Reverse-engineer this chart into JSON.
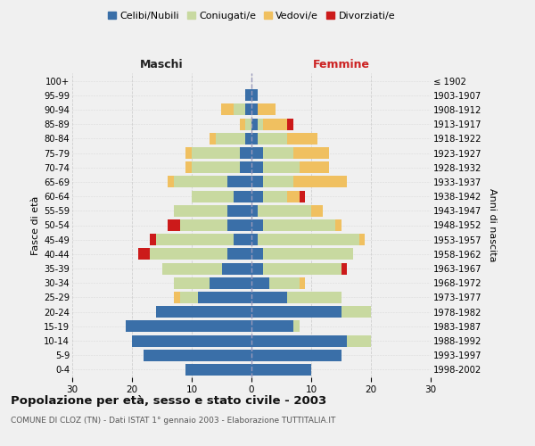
{
  "age_groups": [
    "0-4",
    "5-9",
    "10-14",
    "15-19",
    "20-24",
    "25-29",
    "30-34",
    "35-39",
    "40-44",
    "45-49",
    "50-54",
    "55-59",
    "60-64",
    "65-69",
    "70-74",
    "75-79",
    "80-84",
    "85-89",
    "90-94",
    "95-99",
    "100+"
  ],
  "birth_years": [
    "1998-2002",
    "1993-1997",
    "1988-1992",
    "1983-1987",
    "1978-1982",
    "1973-1977",
    "1968-1972",
    "1963-1967",
    "1958-1962",
    "1953-1957",
    "1948-1952",
    "1943-1947",
    "1938-1942",
    "1933-1937",
    "1928-1932",
    "1923-1927",
    "1918-1922",
    "1913-1917",
    "1908-1912",
    "1903-1907",
    "≤ 1902"
  ],
  "males": {
    "celibi": [
      11,
      18,
      20,
      21,
      16,
      9,
      7,
      5,
      4,
      3,
      4,
      4,
      3,
      4,
      2,
      2,
      1,
      0,
      1,
      1,
      0
    ],
    "coniugati": [
      0,
      0,
      0,
      0,
      0,
      3,
      6,
      10,
      13,
      13,
      8,
      9,
      7,
      9,
      8,
      8,
      5,
      1,
      2,
      0,
      0
    ],
    "vedovi": [
      0,
      0,
      0,
      0,
      0,
      1,
      0,
      0,
      0,
      0,
      0,
      0,
      0,
      1,
      1,
      1,
      1,
      1,
      2,
      0,
      0
    ],
    "divorziati": [
      0,
      0,
      0,
      0,
      0,
      0,
      0,
      0,
      2,
      1,
      2,
      0,
      0,
      0,
      0,
      0,
      0,
      0,
      0,
      0,
      0
    ]
  },
  "females": {
    "nubili": [
      10,
      15,
      16,
      7,
      15,
      6,
      3,
      2,
      2,
      1,
      2,
      1,
      2,
      2,
      2,
      2,
      1,
      1,
      1,
      1,
      0
    ],
    "coniugate": [
      0,
      0,
      4,
      1,
      5,
      9,
      5,
      13,
      15,
      17,
      12,
      9,
      4,
      5,
      6,
      5,
      5,
      1,
      0,
      0,
      0
    ],
    "vedove": [
      0,
      0,
      0,
      0,
      0,
      0,
      1,
      0,
      0,
      1,
      1,
      2,
      2,
      9,
      5,
      6,
      5,
      4,
      3,
      0,
      0
    ],
    "divorziate": [
      0,
      0,
      0,
      0,
      0,
      0,
      0,
      1,
      0,
      0,
      0,
      0,
      1,
      0,
      0,
      0,
      0,
      1,
      0,
      0,
      0
    ]
  },
  "colors": {
    "celibi_nubili": "#3a6fa8",
    "coniugati": "#c8d9a0",
    "vedovi": "#f0c060",
    "divorziati": "#cc1a1a"
  },
  "xlim": 30,
  "title": "Popolazione per età, sesso e stato civile - 2003",
  "subtitle": "COMUNE DI CLOZ (TN) - Dati ISTAT 1° gennaio 2003 - Elaborazione TUTTITALIA.IT",
  "ylabel_left": "Fasce di età",
  "ylabel_right": "Anni di nascita",
  "xlabel_left": "Maschi",
  "xlabel_right": "Femmine",
  "bg_color": "#f0f0f0",
  "grid_color": "#cccccc",
  "legend_labels": [
    "Celibi/Nubili",
    "Coniugati/e",
    "Vedovi/e",
    "Divorziati/e"
  ]
}
